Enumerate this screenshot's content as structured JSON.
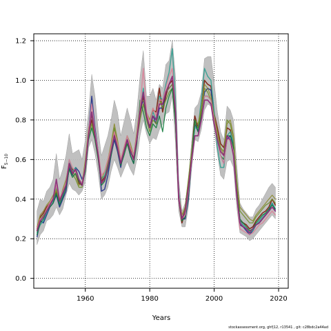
{
  "chart_data": {
    "type": "line",
    "title": "",
    "xlabel": "Years",
    "ylabel_main": "F",
    "ylabel_sub": "5−10",
    "xlim": [
      1944,
      2023
    ],
    "ylim": [
      -0.05,
      1.235
    ],
    "xticks": [
      1960,
      1980,
      2000,
      2020
    ],
    "yticks": [
      0.0,
      0.2,
      0.4,
      0.6,
      0.8,
      1.0,
      1.2
    ],
    "ytick_labels": [
      "0.0",
      "0.2",
      "0.4",
      "0.6",
      "0.8",
      "1.0",
      "1.2"
    ],
    "grid": true,
    "legend": "none",
    "band_color": "#bdbdbd",
    "x": [
      1945,
      1946,
      1947,
      1948,
      1949,
      1950,
      1951,
      1952,
      1953,
      1954,
      1955,
      1956,
      1957,
      1958,
      1959,
      1960,
      1961,
      1962,
      1963,
      1964,
      1965,
      1966,
      1967,
      1968,
      1969,
      1970,
      1971,
      1972,
      1973,
      1974,
      1975,
      1976,
      1977,
      1978,
      1979,
      1980,
      1981,
      1982,
      1983,
      1984,
      1985,
      1986,
      1987,
      1988,
      1989,
      1990,
      1991,
      1992,
      1993,
      1994,
      1995,
      1996,
      1997,
      1998,
      1999,
      2000,
      2001,
      2002,
      2003,
      2004,
      2005,
      2006,
      2007,
      2008,
      2009,
      2010,
      2011,
      2012,
      2013,
      2014,
      2015,
      2016,
      2017,
      2018,
      2019
    ],
    "band_upper": [
      0.34,
      0.4,
      0.39,
      0.44,
      0.46,
      0.5,
      0.63,
      0.5,
      0.55,
      0.62,
      0.73,
      0.63,
      0.64,
      0.65,
      0.6,
      0.7,
      0.84,
      1.03,
      0.92,
      0.75,
      0.62,
      0.67,
      0.72,
      0.8,
      0.9,
      0.84,
      0.72,
      0.79,
      0.86,
      0.8,
      0.73,
      0.85,
      1.02,
      1.15,
      0.92,
      0.92,
      0.96,
      0.9,
      0.98,
      0.96,
      1.08,
      1.1,
      1.2,
      1.02,
      0.5,
      0.34,
      0.38,
      0.5,
      0.69,
      0.86,
      0.88,
      0.94,
      1.11,
      1.12,
      1.12,
      0.99,
      0.84,
      0.74,
      0.7,
      0.87,
      0.85,
      0.8,
      0.58,
      0.38,
      0.35,
      0.33,
      0.31,
      0.31,
      0.35,
      0.37,
      0.4,
      0.43,
      0.46,
      0.48,
      0.46
    ],
    "band_lower": [
      0.17,
      0.22,
      0.24,
      0.29,
      0.3,
      0.32,
      0.36,
      0.32,
      0.35,
      0.42,
      0.48,
      0.45,
      0.44,
      0.42,
      0.44,
      0.49,
      0.66,
      0.7,
      0.63,
      0.53,
      0.4,
      0.42,
      0.46,
      0.54,
      0.6,
      0.56,
      0.51,
      0.55,
      0.59,
      0.55,
      0.52,
      0.6,
      0.72,
      0.8,
      0.73,
      0.68,
      0.71,
      0.7,
      0.75,
      0.78,
      0.83,
      0.84,
      0.92,
      0.68,
      0.34,
      0.26,
      0.26,
      0.36,
      0.55,
      0.7,
      0.69,
      0.75,
      0.85,
      0.88,
      0.87,
      0.75,
      0.63,
      0.52,
      0.5,
      0.59,
      0.6,
      0.56,
      0.36,
      0.23,
      0.22,
      0.21,
      0.19,
      0.2,
      0.22,
      0.24,
      0.26,
      0.28,
      0.3,
      0.32,
      0.3
    ],
    "series": [
      {
        "color": "#7b1c0d",
        "width": 1.6,
        "values": [
          0.25,
          0.31,
          0.33,
          0.36,
          0.38,
          0.4,
          0.44,
          0.38,
          0.43,
          0.47,
          0.58,
          0.55,
          0.54,
          0.48,
          0.47,
          0.56,
          0.74,
          0.8,
          0.72,
          0.62,
          0.49,
          0.51,
          0.56,
          0.64,
          0.74,
          0.66,
          0.58,
          0.64,
          0.7,
          0.66,
          0.6,
          0.7,
          0.83,
          0.92,
          0.82,
          0.77,
          0.85,
          0.84,
          0.96,
          0.84,
          0.92,
          0.98,
          1.0,
          0.8,
          0.4,
          0.28,
          0.34,
          0.48,
          0.62,
          0.82,
          0.76,
          0.85,
          1.0,
          0.98,
          0.97,
          0.83,
          0.76,
          0.68,
          0.66,
          0.76,
          0.75,
          0.66,
          0.45,
          0.29,
          0.28,
          0.27,
          0.25,
          0.26,
          0.29,
          0.31,
          0.33,
          0.34,
          0.36,
          0.4,
          0.37
        ]
      },
      {
        "color": "#1c2a86",
        "width": 1.4,
        "values": [
          0.21,
          0.29,
          0.28,
          0.32,
          0.36,
          0.38,
          0.42,
          0.36,
          0.4,
          0.44,
          0.56,
          0.52,
          0.56,
          0.54,
          0.5,
          0.55,
          0.74,
          0.92,
          0.76,
          0.64,
          0.44,
          0.45,
          0.52,
          0.62,
          0.7,
          0.64,
          0.56,
          0.66,
          0.7,
          0.62,
          0.58,
          0.72,
          0.86,
          0.9,
          0.8,
          0.76,
          0.82,
          0.78,
          0.86,
          0.86,
          0.94,
          0.96,
          0.98,
          0.82,
          0.42,
          0.3,
          0.3,
          0.4,
          0.6,
          0.78,
          0.74,
          0.82,
          0.94,
          0.96,
          0.95,
          0.82,
          0.7,
          0.62,
          0.58,
          0.7,
          0.72,
          0.68,
          0.42,
          0.27,
          0.26,
          0.24,
          0.22,
          0.24,
          0.27,
          0.28,
          0.3,
          0.32,
          0.34,
          0.38,
          0.34
        ]
      },
      {
        "color": "#2e9d8f",
        "width": 1.4,
        "values": [
          0.23,
          0.27,
          0.29,
          0.33,
          0.37,
          0.39,
          0.46,
          0.38,
          0.42,
          0.48,
          0.6,
          0.54,
          0.56,
          0.5,
          0.48,
          0.58,
          0.72,
          0.84,
          0.74,
          0.64,
          0.5,
          0.52,
          0.58,
          0.64,
          0.76,
          0.68,
          0.6,
          0.66,
          0.72,
          0.64,
          0.62,
          0.72,
          0.84,
          0.96,
          0.8,
          0.78,
          0.84,
          0.8,
          0.92,
          0.9,
          0.98,
          1.04,
          1.16,
          0.9,
          0.44,
          0.3,
          0.32,
          0.44,
          0.62,
          0.76,
          0.76,
          0.9,
          1.06,
          1.02,
          1.0,
          0.84,
          0.66,
          0.56,
          0.56,
          0.72,
          0.74,
          0.68,
          0.44,
          0.29,
          0.27,
          0.25,
          0.23,
          0.24,
          0.27,
          0.29,
          0.31,
          0.33,
          0.35,
          0.38,
          0.35
        ]
      },
      {
        "color": "#6e8f2a",
        "width": 1.3,
        "values": [
          0.24,
          0.3,
          0.32,
          0.35,
          0.37,
          0.4,
          0.45,
          0.4,
          0.44,
          0.48,
          0.57,
          0.53,
          0.5,
          0.46,
          0.46,
          0.56,
          0.72,
          0.78,
          0.7,
          0.6,
          0.48,
          0.5,
          0.58,
          0.66,
          0.76,
          0.68,
          0.6,
          0.64,
          0.68,
          0.64,
          0.6,
          0.7,
          0.8,
          0.88,
          0.8,
          0.74,
          0.8,
          0.78,
          0.9,
          0.86,
          0.9,
          0.94,
          0.96,
          0.78,
          0.4,
          0.3,
          0.36,
          0.5,
          0.64,
          0.78,
          0.76,
          0.84,
          0.96,
          0.94,
          0.9,
          0.8,
          0.72,
          0.66,
          0.64,
          0.8,
          0.78,
          0.7,
          0.5,
          0.34,
          0.32,
          0.3,
          0.28,
          0.28,
          0.31,
          0.33,
          0.35,
          0.37,
          0.38,
          0.4,
          0.38
        ]
      },
      {
        "color": "#8a8a2e",
        "width": 1.2,
        "values": [
          0.26,
          0.32,
          0.34,
          0.37,
          0.39,
          0.42,
          0.44,
          0.39,
          0.45,
          0.5,
          0.58,
          0.54,
          0.52,
          0.47,
          0.48,
          0.6,
          0.76,
          0.82,
          0.72,
          0.62,
          0.5,
          0.54,
          0.6,
          0.68,
          0.78,
          0.7,
          0.6,
          0.66,
          0.72,
          0.68,
          0.62,
          0.74,
          0.88,
          0.9,
          0.84,
          0.8,
          0.86,
          0.82,
          0.9,
          0.88,
          0.94,
          0.96,
          0.98,
          0.8,
          0.42,
          0.32,
          0.36,
          0.48,
          0.62,
          0.8,
          0.78,
          0.86,
          0.98,
          0.96,
          0.92,
          0.82,
          0.74,
          0.66,
          0.62,
          0.78,
          0.8,
          0.72,
          0.48,
          0.36,
          0.34,
          0.32,
          0.3,
          0.29,
          0.32,
          0.34,
          0.36,
          0.38,
          0.4,
          0.42,
          0.4
        ]
      },
      {
        "color": "#0f7a3a",
        "width": 1.3,
        "values": [
          0.22,
          0.28,
          0.3,
          0.34,
          0.36,
          0.38,
          0.43,
          0.37,
          0.41,
          0.46,
          0.55,
          0.51,
          0.53,
          0.49,
          0.47,
          0.54,
          0.7,
          0.76,
          0.7,
          0.6,
          0.47,
          0.49,
          0.55,
          0.62,
          0.72,
          0.65,
          0.57,
          0.62,
          0.68,
          0.62,
          0.58,
          0.68,
          0.9,
          0.84,
          0.76,
          0.72,
          0.78,
          0.76,
          0.82,
          0.74,
          0.86,
          0.92,
          0.96,
          0.78,
          0.4,
          0.29,
          0.31,
          0.42,
          0.6,
          0.8,
          0.74,
          0.82,
          0.92,
          0.92,
          0.9,
          0.78,
          0.7,
          0.62,
          0.6,
          0.72,
          0.72,
          0.66,
          0.44,
          0.3,
          0.28,
          0.26,
          0.24,
          0.25,
          0.28,
          0.3,
          0.32,
          0.33,
          0.35,
          0.37,
          0.35
        ]
      },
      {
        "color": "#d9849a",
        "width": 1.5,
        "values": [
          0.25,
          0.3,
          0.31,
          0.35,
          0.38,
          0.41,
          0.47,
          0.4,
          0.44,
          0.48,
          0.6,
          0.56,
          0.54,
          0.5,
          0.48,
          0.57,
          0.74,
          0.88,
          0.74,
          0.64,
          0.52,
          0.54,
          0.6,
          0.66,
          0.74,
          0.68,
          0.6,
          0.66,
          0.72,
          0.66,
          0.62,
          0.72,
          0.86,
          1.06,
          0.84,
          0.78,
          0.86,
          0.82,
          0.9,
          0.9,
          0.96,
          1.02,
          1.06,
          0.86,
          0.42,
          0.3,
          0.32,
          0.44,
          0.6,
          0.72,
          0.72,
          0.8,
          0.92,
          0.92,
          0.9,
          0.8,
          0.7,
          0.62,
          0.58,
          0.7,
          0.7,
          0.64,
          0.42,
          0.25,
          0.24,
          0.23,
          0.22,
          0.23,
          0.25,
          0.27,
          0.28,
          0.3,
          0.32,
          0.34,
          0.32
        ]
      },
      {
        "color": "#8c2a78",
        "width": 1.8,
        "values": [
          0.24,
          0.29,
          0.31,
          0.34,
          0.37,
          0.4,
          0.5,
          0.39,
          0.43,
          0.47,
          0.58,
          0.53,
          0.55,
          0.5,
          0.47,
          0.56,
          0.72,
          0.84,
          0.72,
          0.62,
          0.48,
          0.5,
          0.56,
          0.64,
          0.72,
          0.66,
          0.58,
          0.64,
          0.7,
          0.64,
          0.6,
          0.7,
          0.84,
          0.94,
          0.82,
          0.76,
          0.82,
          0.8,
          0.88,
          0.88,
          0.94,
          0.98,
          1.02,
          0.84,
          0.4,
          0.3,
          0.34,
          0.46,
          0.6,
          0.72,
          0.72,
          0.8,
          0.9,
          0.9,
          0.88,
          0.78,
          0.7,
          0.64,
          0.62,
          0.72,
          0.7,
          0.62,
          0.42,
          0.28,
          0.26,
          0.25,
          0.23,
          0.25,
          0.27,
          0.28,
          0.3,
          0.32,
          0.34,
          0.36,
          0.34
        ]
      }
    ]
  },
  "footer_text": "stockassessment.org,  ghf|12,  r13541 ,  git:  c28bdc2a44ad"
}
